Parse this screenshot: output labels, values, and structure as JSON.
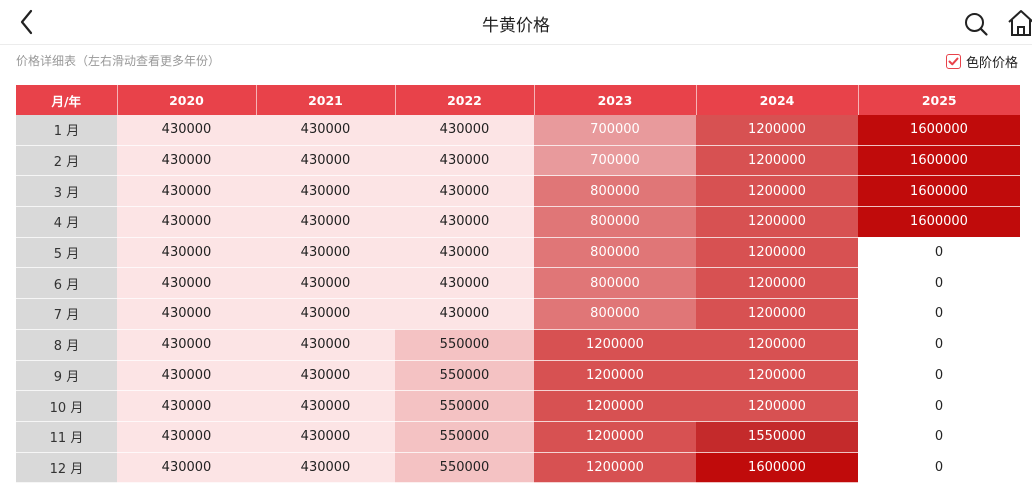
{
  "header": {
    "title": "牛黄价格"
  },
  "subtitle": "价格详细表（左右滑动查看更多年份）",
  "color_toggle": {
    "label": "色阶价格",
    "checked": true
  },
  "table": {
    "corner_label": "月/年",
    "years": [
      "2020",
      "2021",
      "2022",
      "2023",
      "2024",
      "2025"
    ],
    "rows": [
      {
        "month": "1 月",
        "values": [
          "430000",
          "430000",
          "430000",
          "700000",
          "1200000",
          "1600000"
        ]
      },
      {
        "month": "2 月",
        "values": [
          "430000",
          "430000",
          "430000",
          "700000",
          "1200000",
          "1600000"
        ]
      },
      {
        "month": "3 月",
        "values": [
          "430000",
          "430000",
          "430000",
          "800000",
          "1200000",
          "1600000"
        ]
      },
      {
        "month": "4 月",
        "values": [
          "430000",
          "430000",
          "430000",
          "800000",
          "1200000",
          "1600000"
        ]
      },
      {
        "month": "5 月",
        "values": [
          "430000",
          "430000",
          "430000",
          "800000",
          "1200000",
          "0"
        ]
      },
      {
        "month": "6 月",
        "values": [
          "430000",
          "430000",
          "430000",
          "800000",
          "1200000",
          "0"
        ]
      },
      {
        "month": "7 月",
        "values": [
          "430000",
          "430000",
          "430000",
          "800000",
          "1200000",
          "0"
        ]
      },
      {
        "month": "8 月",
        "values": [
          "430000",
          "430000",
          "550000",
          "1200000",
          "1200000",
          "0"
        ]
      },
      {
        "month": "9 月",
        "values": [
          "430000",
          "430000",
          "550000",
          "1200000",
          "1200000",
          "0"
        ]
      },
      {
        "month": "10 月",
        "values": [
          "430000",
          "430000",
          "550000",
          "1200000",
          "1200000",
          "0"
        ]
      },
      {
        "month": "11 月",
        "values": [
          "430000",
          "430000",
          "550000",
          "1200000",
          "1550000",
          "0"
        ]
      },
      {
        "month": "12 月",
        "values": [
          "430000",
          "430000",
          "550000",
          "1200000",
          "1600000",
          "0"
        ]
      }
    ]
  },
  "colors": {
    "accent": "#e8424a",
    "month_column": "#d9d9d9",
    "scale": {
      "0": "#ffffff",
      "430000": "#fce4e5",
      "550000": "#f4c2c3",
      "700000": "#e89a9c",
      "800000": "#e07677",
      "1200000": "#d75152",
      "1550000": "#c42a2b",
      "1600000": "#c00b0b"
    }
  },
  "icons": {
    "back": "chevron-left-icon",
    "search": "search-icon",
    "home": "home-icon",
    "check": "check-icon"
  }
}
